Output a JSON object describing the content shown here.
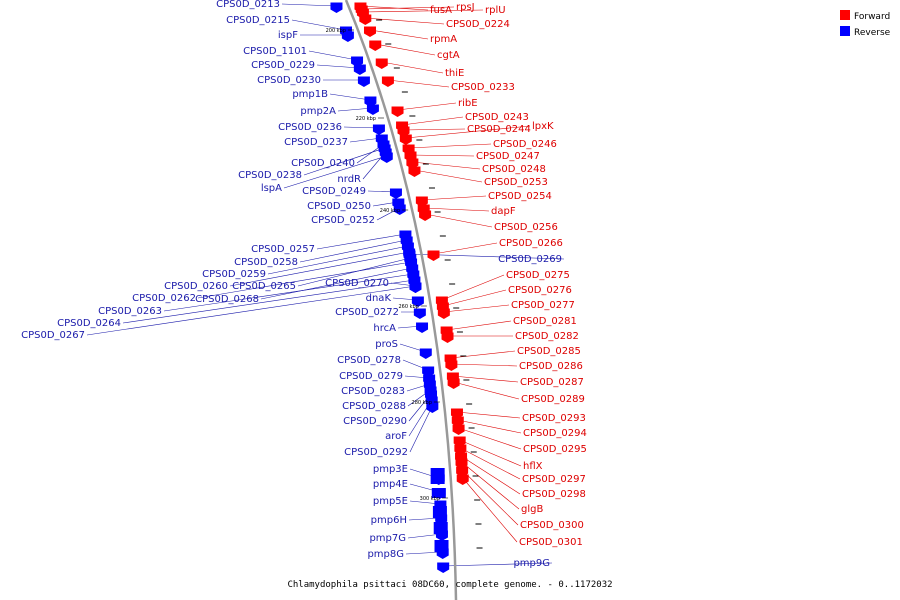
{
  "title": "Chlamydophila psittaci 08DC60, complete genome. - 0..1172032",
  "colors": {
    "forward": "#ff0000",
    "reverse": "#0000ff",
    "backbone": "#999999",
    "forward_label": "#dd0000",
    "reverse_label": "#1a1aaa"
  },
  "legend": [
    {
      "label": "Forward",
      "color": "#ff0000"
    },
    {
      "label": "Reverse",
      "color": "#0000ff"
    }
  ],
  "kbp_marks": [
    "200 kbp",
    "220 kbp",
    "240 kbp",
    "260 kbp",
    "280 kbp",
    "300 kbp"
  ],
  "forward_genes": [
    "fusA",
    "rpsJ",
    "rplU",
    "CPS0D_0224",
    "rpmA",
    "cgtA",
    "thiE",
    "CPS0D_0233",
    "ribE",
    "CPS0D_0243",
    "CPS0D_0244",
    "lpxK",
    "CPS0D_0246",
    "CPS0D_0247",
    "CPS0D_0248",
    "CPS0D_0253",
    "CPS0D_0254",
    "dapF",
    "CPS0D_0256",
    "CPS0D_0266",
    "CPS0D_0275",
    "CPS0D_0276",
    "CPS0D_0277",
    "CPS0D_0281",
    "CPS0D_0282",
    "CPS0D_0285",
    "CPS0D_0286",
    "CPS0D_0287",
    "CPS0D_0289",
    "CPS0D_0293",
    "CPS0D_0294",
    "CPS0D_0295",
    "hflX",
    "CPS0D_0297",
    "CPS0D_0298",
    "glgB",
    "CPS0D_0300",
    "CPS0D_0301"
  ],
  "reverse_genes": [
    "CPS0D_0213",
    "CPS0D_0215",
    "ispF",
    "CPS0D_1101",
    "CPS0D_0229",
    "CPS0D_0230",
    "pmp1B",
    "pmp2A",
    "CPS0D_0236",
    "CPS0D_0237",
    "CPS0D_0240",
    "CPS0D_0238",
    "nrdR",
    "lspA",
    "CPS0D_0249",
    "CPS0D_0250",
    "CPS0D_0252",
    "CPS0D_0257",
    "CPS0D_0258",
    "CPS0D_0259",
    "CPS0D_0260",
    "CPS0D_0265",
    "CPS0D_0270",
    "CPS0D_0262",
    "CPS0D_0268",
    "dnaK",
    "CPS0D_0263",
    "CPS0D_0272",
    "CPS0D_0264",
    "CPS0D_0267",
    "hrcA",
    "proS",
    "CPS0D_0278",
    "CPS0D_0279",
    "CPS0D_0283",
    "CPS0D_0288",
    "CPS0D_0290",
    "aroF",
    "CPS0D_0292",
    "pmp3E",
    "pmp4E",
    "pmp5E",
    "pmp6H",
    "pmp7G",
    "pmp8G",
    "CPS0D_0269",
    "pmp9G"
  ]
}
